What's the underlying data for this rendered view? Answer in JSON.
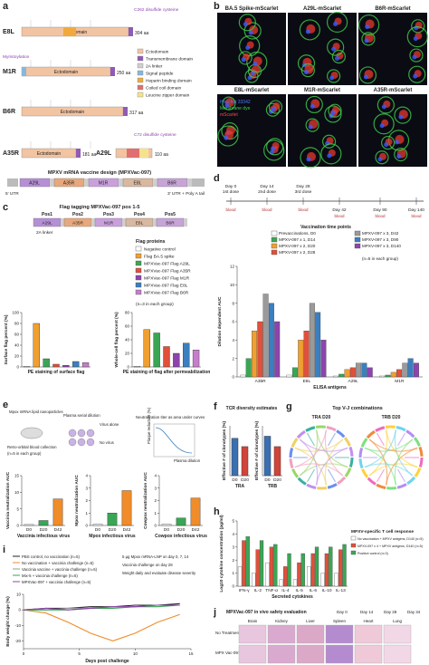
{
  "panel_a": {
    "label": "a",
    "rows": [
      {
        "name": "E8L",
        "domain": "Ectodomain",
        "length": "304 aa"
      },
      {
        "name": "M1R",
        "domain": "Ectodomain",
        "length": "250 aa"
      },
      {
        "name": "B6R",
        "domain": "Ectodomain",
        "length": "317 aa"
      },
      {
        "name": "A35R",
        "domain": "Ectodomain",
        "length": "181 aa"
      },
      {
        "name": "A29L",
        "domain": "Ectodomain",
        "length": "110 aa"
      }
    ],
    "annotations": [
      "C262 disulfide cysteine",
      "Myristoylation",
      "C72 disulfide cysteine"
    ],
    "legend": [
      {
        "name": "Ectodomain",
        "color": "#f2c4a2"
      },
      {
        "name": "Transmembrane domain",
        "color": "#8e5bb5"
      },
      {
        "name": "2A linker",
        "color": "#cfcfcf"
      },
      {
        "name": "Signal peptide",
        "color": "#86b7dd"
      },
      {
        "name": "Heparin binding domain",
        "color": "#f2a93b"
      },
      {
        "name": "Coiled coil domain",
        "color": "#e06f6f"
      },
      {
        "name": "Leucine zipper domain",
        "color": "#f5e28c"
      }
    ],
    "construct_title": "MPXV mRNA vaccine design (MPXVac-097)",
    "construct": [
      "A29L",
      "A35R",
      "M1R",
      "E8L",
      "B6R"
    ],
    "utr5": "5' UTR",
    "utr3": "3' UTR + Poly A tail"
  },
  "panel_b": {
    "label": "b",
    "images": [
      "BA.5 Spike-mScarlet",
      "A29L-mScarlet",
      "B6R-mScarlet",
      "E8L-mScarlet",
      "M1R-mScarlet",
      "A35R-mScarlet"
    ],
    "stains": [
      {
        "name": "Hoechst 33342",
        "color": "#4d7cff"
      },
      {
        "name": "Membrane dye",
        "color": "#3fd14a"
      },
      {
        "name": "mScarlet",
        "color": "#ff4a3a"
      }
    ]
  },
  "panel_c": {
    "label": "c",
    "title": "Flag tagging MPXVac-097 pos 1-5",
    "positions": [
      "Pos1",
      "Pos2",
      "Pos3",
      "Pos4",
      "Pos5"
    ],
    "linker": "2A linker",
    "legend_title": "Flag proteins",
    "legend": [
      {
        "name": "Negative control",
        "color": "#ffffff"
      },
      {
        "name": "Flag BA.5 spike",
        "color": "#f0a030"
      },
      {
        "name": "MPXVac-097 Flag A29L",
        "color": "#3aa655"
      },
      {
        "name": "MPXVac-097 Flag A35R",
        "color": "#e0503a"
      },
      {
        "name": "MPXVac-097 Flag M1R",
        "color": "#8e44ad"
      },
      {
        "name": "MPXVac-097 Flag E8L",
        "color": "#3a7fc0"
      },
      {
        "name": "MPXVac-097 Flag B6R",
        "color": "#c77dcc"
      }
    ],
    "note": "(n=3 in each group)",
    "charts": [
      {
        "ylabel": "Surface flag percent (%)",
        "xlabel": "PE staining of surface flag",
        "values": [
          1,
          80,
          15,
          5,
          3,
          10,
          8
        ],
        "ylim": [
          0,
          100
        ],
        "yticks": [
          0,
          20,
          40,
          60,
          80,
          100
        ]
      },
      {
        "ylabel": "Whole-cell flag percent (%)",
        "xlabel": "PE staining of flag after permeabilization",
        "values": [
          1,
          55,
          50,
          30,
          20,
          35,
          25
        ],
        "ylim": [
          0,
          80
        ],
        "yticks": [
          0,
          20,
          40,
          60,
          80
        ]
      }
    ]
  },
  "panel_d": {
    "label": "d",
    "days": [
      "Day 0",
      "Day 14",
      "Day 28",
      "Day 42",
      "Day 90",
      "Day 140"
    ],
    "doses": [
      "1st dose",
      "2nd dose",
      "3rd dose"
    ],
    "blood": "blood",
    "timepoints": "Vaccination time points",
    "note": "(n=5 in each group)",
    "chart": {
      "type": "bar",
      "ylabel": "Dilution dependent AUC",
      "xlabel": "ELISA antigens",
      "categories": [
        "A35R",
        "E8L",
        "A29L",
        "M1R"
      ],
      "ylim": [
        0,
        12
      ],
      "yticks": [
        0,
        2,
        4,
        6,
        8,
        10,
        12
      ],
      "series": [
        {
          "name": "Prevaccinations, D0",
          "color": "#ffffff",
          "values": [
            0.2,
            0.2,
            0.1,
            0.1
          ]
        },
        {
          "name": "MPXV-097 x 1, D14",
          "color": "#3aa655",
          "values": [
            2,
            1,
            0.3,
            0.2
          ]
        },
        {
          "name": "MPXV-097 x 2, D20",
          "color": "#f0a030",
          "values": [
            5,
            4,
            0.8,
            0.5
          ]
        },
        {
          "name": "MPXV-097 x 2, D28",
          "color": "#e0503a",
          "values": [
            6,
            5,
            1,
            0.8
          ]
        },
        {
          "name": "MPXV-097 x 3, D42",
          "color": "#9a9a9a",
          "values": [
            9,
            8,
            1.5,
            1.5
          ]
        },
        {
          "name": "MPXV-097 x 3, D90",
          "color": "#3a7fc0",
          "values": [
            8,
            7,
            1.5,
            2
          ]
        },
        {
          "name": "MPXV-097 x 3, D140",
          "color": "#8e44ad",
          "values": [
            6,
            4,
            1,
            1.5
          ]
        }
      ]
    }
  },
  "panel_e": {
    "label": "e",
    "schematic": [
      "Mpox mRNA lipid nanoparticles",
      "Retro-orbital blood collection",
      "(n=5 in each group)",
      "Plasma serial dilution",
      "Virus alone",
      "No virus",
      "Neutralization titer as area under curves",
      "Plaque reduction (%)",
      "Plasma dilution"
    ],
    "charts": [
      {
        "ylabel": "Vaccinia neutralization AUC",
        "xlabel": "Vaccinia infectious virus",
        "categories": [
          "D0",
          "D20",
          "D42"
        ],
        "colors": [
          "#ffffff",
          "#3aa655",
          "#f08c2a"
        ],
        "values": [
          0.3,
          1.5,
          8
        ],
        "ylim": [
          0,
          15
        ],
        "yticks": [
          0,
          5,
          10,
          15
        ]
      },
      {
        "ylabel": "Mpox neutralization AUC",
        "xlabel": "Mpox infectious virus",
        "categories": [
          "D0",
          "D20",
          "D42"
        ],
        "colors": [
          "#ffffff",
          "#3aa655",
          "#f08c2a"
        ],
        "values": [
          0.1,
          1.0,
          2.8
        ],
        "ylim": [
          0,
          4
        ],
        "yticks": [
          0,
          1,
          2,
          3,
          4
        ]
      },
      {
        "ylabel": "Cowpox neutralization AUC",
        "xlabel": "Cowpox infectious virus",
        "categories": [
          "D0",
          "D20",
          "D42"
        ],
        "colors": [
          "#ffffff",
          "#3aa655",
          "#f08c2a"
        ],
        "values": [
          0.1,
          0.6,
          2.2
        ],
        "ylim": [
          0,
          4
        ],
        "yticks": [
          0,
          1,
          2,
          3,
          4
        ]
      }
    ]
  },
  "panel_f": {
    "label": "f",
    "title": "TCR diversity estimates",
    "charts": [
      {
        "ylabel": "Effective # of clonotypes (%)",
        "xlabel": "TRA",
        "categories": [
          "D0",
          "D20"
        ],
        "colors": [
          "#3a6fb0",
          "#d0443a"
        ],
        "values": [
          0.9,
          0.7
        ],
        "ylim": [
          0,
          1.2
        ]
      },
      {
        "ylabel": "Effective # of clonotypes (%)",
        "xlabel": "TRB",
        "categories": [
          "D0",
          "D20"
        ],
        "colors": [
          "#3a6fb0",
          "#d0443a"
        ],
        "values": [
          0.95,
          0.7
        ],
        "ylim": [
          0,
          1.2
        ]
      }
    ]
  },
  "panel_g": {
    "label": "g",
    "title": "Top V-J combinations",
    "plots": [
      "TRA D20",
      "TRB D20"
    ]
  },
  "panel_h": {
    "label": "h",
    "legend_title": "MPXV-specific T cell response",
    "chart": {
      "type": "bar",
      "ylabel": "Log10 cytokine concentration (pg/ml)",
      "xlabel": "Secreted cytokines",
      "categories": [
        "IFN-γ",
        "IL-2",
        "TNF-α",
        "IL-4",
        "IL-5",
        "IL-6",
        "IL-10",
        "IL-13"
      ],
      "ylim": [
        0,
        5
      ],
      "yticks": [
        0,
        1,
        2,
        3,
        4,
        5
      ],
      "series": [
        {
          "name": "No vaccination + MPXV antigens, D140 (n=5)",
          "color": "#ffffff",
          "values": [
            1.5,
            1.0,
            1.8,
            0.5,
            0.5,
            1.5,
            1.0,
            1.0
          ]
        },
        {
          "name": "MPXV-097 x 4 + MPXV antigens, D140 (n=5)",
          "color": "#e0503a",
          "values": [
            3.5,
            2.8,
            3.0,
            1.5,
            1.8,
            2.5,
            2.5,
            2.8
          ]
        },
        {
          "name": "Positive control (n=3)",
          "color": "#3aa655",
          "values": [
            3.8,
            3.5,
            3.2,
            2.5,
            2.5,
            3.0,
            3.0,
            3.2
          ]
        }
      ]
    }
  },
  "panel_i": {
    "label": "i",
    "schematic": [
      "5 µg Mpox mRNA-LNP on day 0, 7, 14",
      "Vaccinia challenge on day 28",
      "Weight daily and evaluate disease severity"
    ],
    "chart": {
      "type": "line",
      "ylabel": "Body weight change (%)",
      "xlabel": "Days post challenge",
      "x": [
        0,
        2,
        4,
        6,
        8,
        10,
        12,
        14
      ],
      "xlim": [
        0,
        15
      ],
      "xticks": [
        0,
        5,
        10,
        15
      ],
      "ylim": [
        -25,
        10
      ],
      "yticks": [
        -20,
        -10,
        0,
        10
      ],
      "series": [
        {
          "name": "PBS control, no vaccination (n=5)",
          "color": "#222222",
          "values": [
            0,
            1,
            1,
            2,
            2,
            3,
            3,
            4
          ]
        },
        {
          "name": "No vaccination + vaccinia challenge (n=5)",
          "color": "#f08c2a",
          "values": [
            0,
            -2,
            -8,
            -15,
            -20,
            -15,
            -8,
            -3
          ]
        },
        {
          "name": "Vaccinia vaccine + vaccinia challenge (n=5)",
          "color": "#9a9a9a",
          "values": [
            0,
            0,
            1,
            1,
            2,
            2,
            3,
            3
          ]
        },
        {
          "name": "Mix-5 + vaccinia challenge (n=5)",
          "color": "#3aa655",
          "values": [
            0,
            0,
            0,
            1,
            1,
            2,
            2,
            3
          ]
        },
        {
          "name": "MPXVac-097 + vaccinia challenge (n=5)",
          "color": "#8e44ad",
          "values": [
            0,
            1,
            0,
            1,
            2,
            2,
            3,
            3
          ]
        }
      ]
    }
  },
  "panel_j": {
    "label": "j",
    "title": "MPXVac-097 in vivo safety evaluation",
    "schedule": [
      "Day 0",
      "Day 14",
      "Day 28",
      "Day 34"
    ],
    "tissues": [
      "Brain",
      "Kidney",
      "Liver",
      "Spleen",
      "Heart",
      "Lung"
    ],
    "groups": [
      "No Treatment",
      "MPX Vac-097"
    ]
  }
}
